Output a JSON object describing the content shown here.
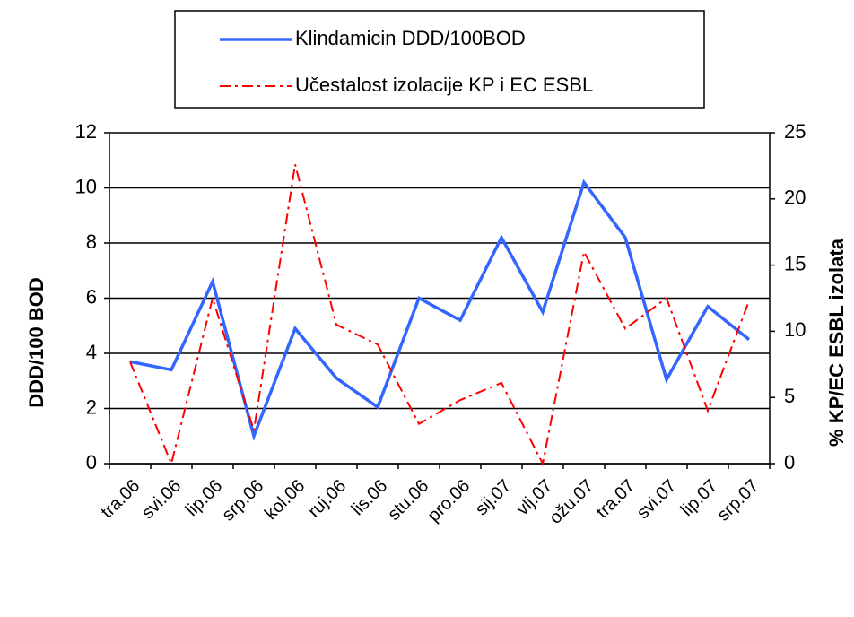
{
  "chart_data": {
    "type": "line",
    "categories": [
      "tra.06",
      "svi.06",
      "lip.06",
      "srp.06",
      "kol.06",
      "ruj.06",
      "lis.06",
      "stu.06",
      "pro.06",
      "sij.07",
      "vlj.07",
      "ožu.07",
      "tra.07",
      "svi.07",
      "lip.07",
      "srp.07"
    ],
    "series": [
      {
        "name": "Klindamicin DDD/100BOD",
        "color": "#3366ff",
        "dash": "solid",
        "values": [
          3.7,
          3.4,
          6.6,
          1.0,
          4.9,
          3.1,
          2.05,
          6.0,
          5.2,
          8.2,
          5.5,
          10.2,
          8.2,
          3.05,
          5.7,
          4.5
        ]
      },
      {
        "name": "Učestalost izolacije KP i EC ESBL",
        "color": "#ff0000",
        "dash": "dashdot",
        "axis": "y2",
        "values": [
          7.7,
          0,
          12.5,
          2.5,
          22.6,
          10.5,
          9,
          3,
          4.8,
          6.1,
          0,
          16,
          10.2,
          12.5,
          4,
          12.3
        ]
      }
    ],
    "ylabel": "DDD/100 BOD",
    "y2label": "% KP/EC ESBL izolata",
    "ylim": [
      0,
      12
    ],
    "yticks": [
      0,
      2,
      4,
      6,
      8,
      10,
      12
    ],
    "y2lim": [
      0,
      25
    ],
    "y2ticks": [
      0,
      5,
      10,
      15,
      20,
      25
    ],
    "grid": true,
    "legend": "top"
  }
}
